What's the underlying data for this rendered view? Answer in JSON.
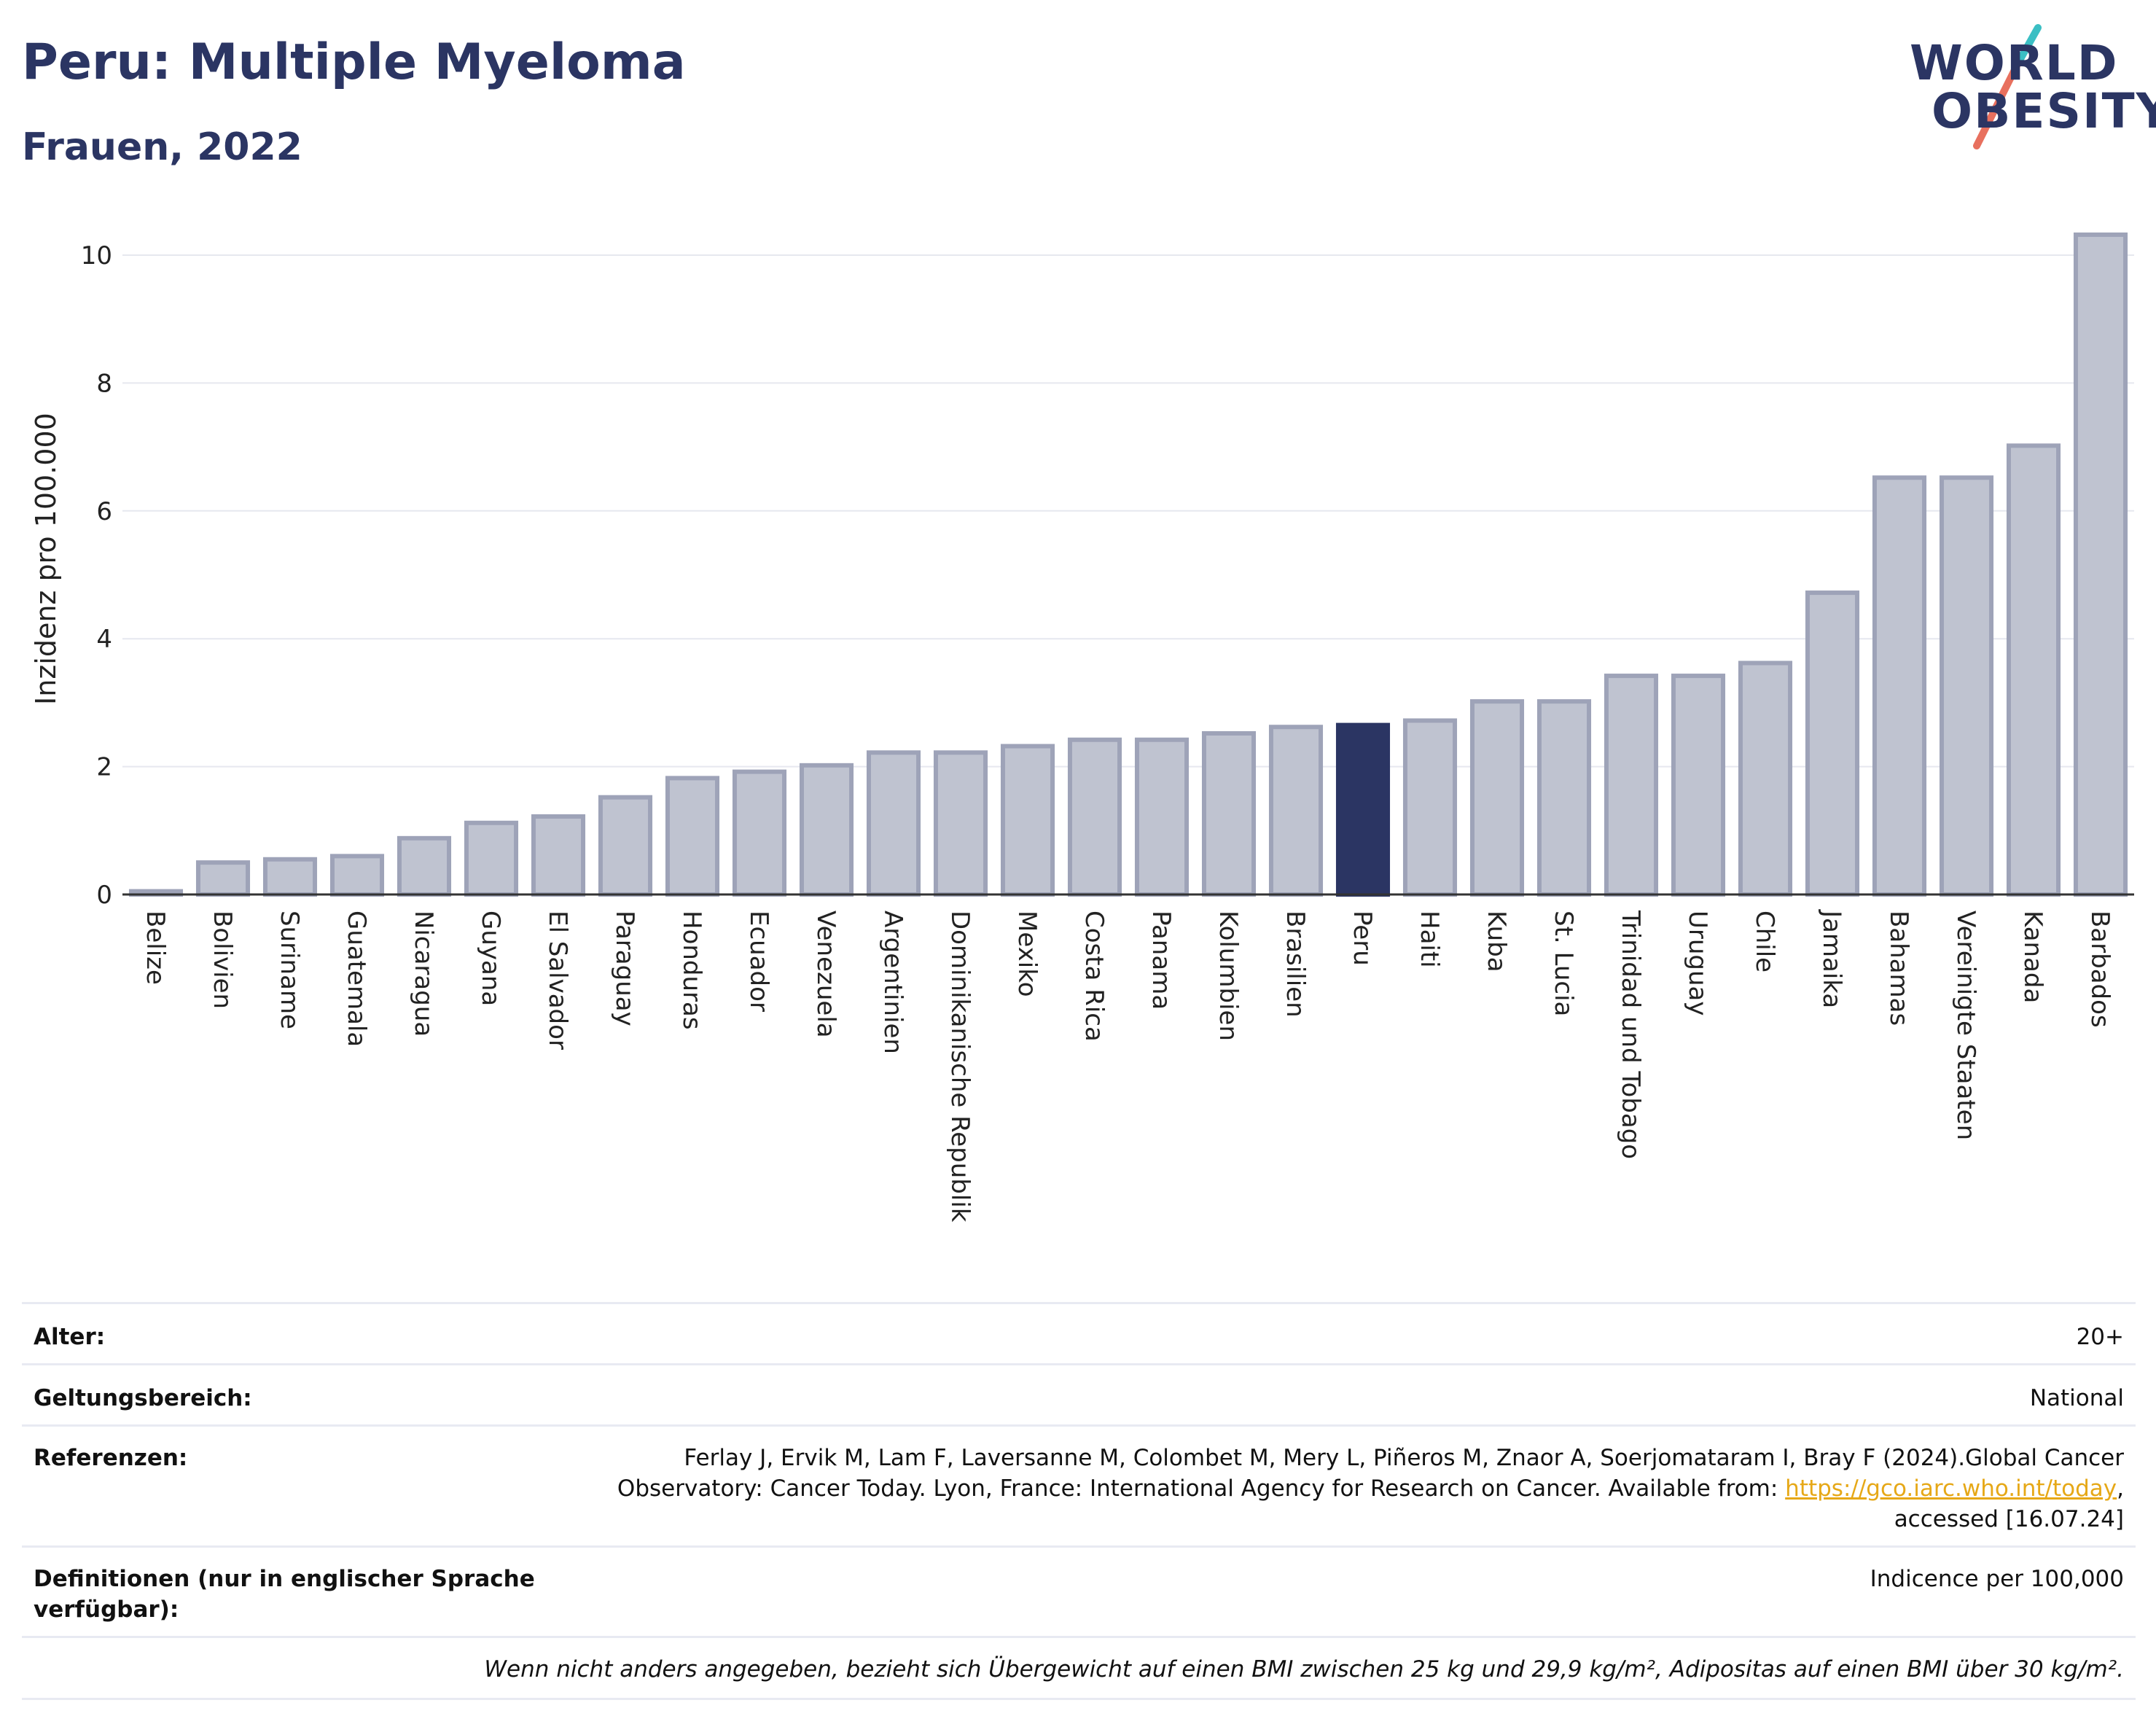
{
  "header": {
    "title": "Peru: Multiple Myeloma",
    "subtitle": "Frauen, 2022"
  },
  "logo": {
    "line1": "WORLD",
    "line2": "OBESITY",
    "colors": {
      "text": "#2b3563",
      "slash_top": "#3bbfc4",
      "slash_bottom": "#e8705e"
    }
  },
  "chart_data": {
    "type": "bar",
    "ylabel": "Inzidenz pro 100.000",
    "xlabel": "",
    "ylim": [
      0,
      10.5
    ],
    "yticks": [
      0,
      2,
      4,
      6,
      8,
      10
    ],
    "grid": true,
    "highlight": "Peru",
    "colors": {
      "bar": "#bfc3d0",
      "bar_edge": "#9ea3b8",
      "highlight": "#2b3563",
      "grid": "#e6e8ef",
      "axis": "#333333"
    },
    "categories": [
      "Belize",
      "Bolivien",
      "Suriname",
      "Guatemala",
      "Nicaragua",
      "Guyana",
      "El Salvador",
      "Paraguay",
      "Honduras",
      "Ecuador",
      "Venezuela",
      "Argentinien",
      "Dominikanische Republik",
      "Mexiko",
      "Costa Rica",
      "Panama",
      "Kolumbien",
      "Brasilien",
      "Peru",
      "Haiti",
      "Kuba",
      "St. Lucia",
      "Trinidad und Tobago",
      "Uruguay",
      "Chile",
      "Jamaika",
      "Bahamas",
      "Vereinigte Staaten",
      "Kanada",
      "Barbados"
    ],
    "values": [
      0.05,
      0.5,
      0.55,
      0.6,
      0.88,
      1.12,
      1.22,
      1.52,
      1.82,
      1.92,
      2.02,
      2.22,
      2.22,
      2.32,
      2.42,
      2.42,
      2.52,
      2.62,
      2.65,
      2.72,
      3.02,
      3.02,
      3.42,
      3.42,
      3.62,
      4.72,
      6.52,
      6.52,
      7.02,
      10.32
    ]
  },
  "meta": {
    "rows": [
      {
        "label": "Alter:",
        "value": "20+"
      },
      {
        "label": "Geltungsbereich:",
        "value": "National"
      },
      {
        "label": "Referenzen:",
        "value_line1": "Ferlay J, Ervik M, Lam F, Laversanne M, Colombet M, Mery L, Piñeros M, Znaor A, Soerjomataram I, Bray F (2024).Global Cancer",
        "value_line2_prefix": "Observatory: Cancer Today. Lyon, France: International Agency for Research on Cancer. Available from: ",
        "link": "https://gco.iarc.who.int/today",
        "value_line2_suffix": ",",
        "value_line3": "accessed [16.07.24]"
      },
      {
        "label": "Definitionen (nur in englischer Sprache verfügbar):",
        "value": "Indicence per 100,000"
      }
    ],
    "note": "Wenn nicht anders angegeben, bezieht sich Übergewicht auf einen BMI zwischen 25 kg und 29,9 kg/m², Adipositas auf einen BMI über 30 kg/m²."
  }
}
